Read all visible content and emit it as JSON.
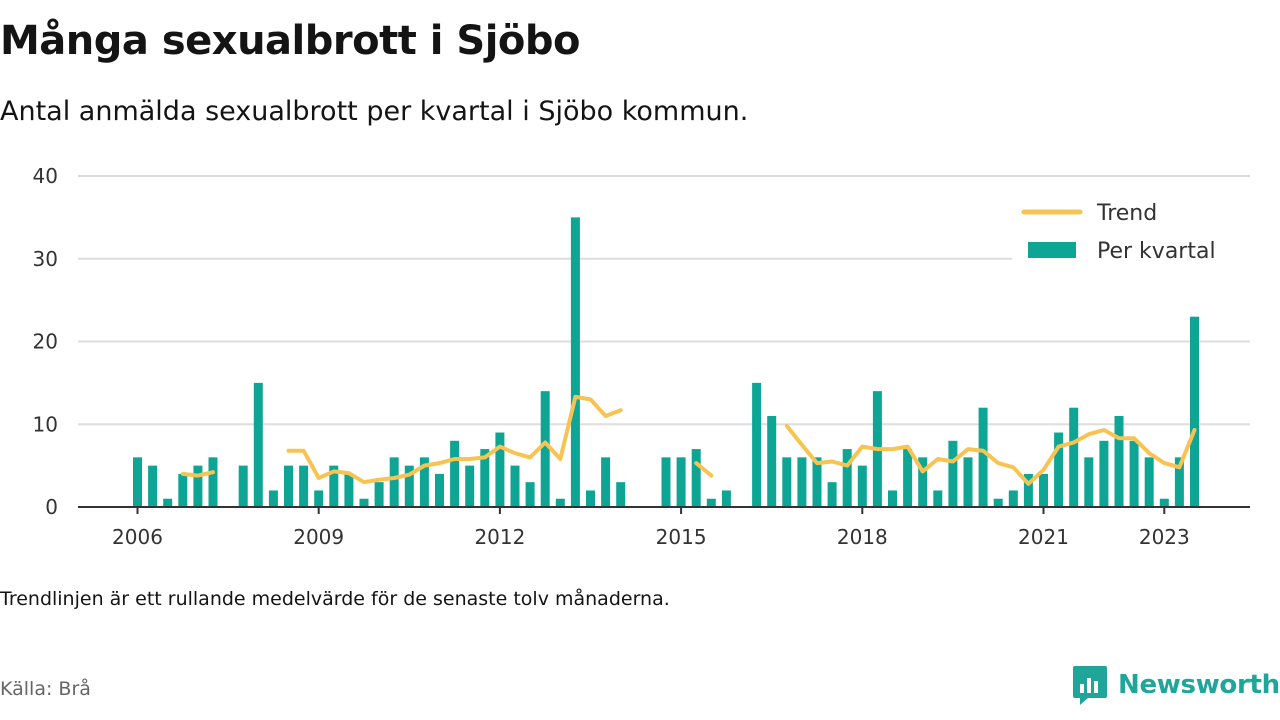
{
  "title": "Många sexualbrott i Sjöbo",
  "subtitle": "Antal anmälda sexualbrott per kvartal i Sjöbo kommun.",
  "footnote": "Trendlinjen är ett rullande medelvärde för de senaste tolv månaderna.",
  "source": "Källa: Brå",
  "brand": "Newsworthy",
  "colors": {
    "bars": "#0ea595",
    "trend": "#f7c453",
    "grid": "#dddddd",
    "axis": "#333333",
    "brand": "#20a59a"
  },
  "chart_data": {
    "type": "bar",
    "x": [
      "2006Q1",
      "2006Q2",
      "2006Q3",
      "2006Q4",
      "2007Q1",
      "2007Q2",
      "2007Q3",
      "2007Q4",
      "2008Q1",
      "2008Q2",
      "2008Q3",
      "2008Q4",
      "2009Q1",
      "2009Q2",
      "2009Q3",
      "2009Q4",
      "2010Q1",
      "2010Q2",
      "2010Q3",
      "2010Q4",
      "2011Q1",
      "2011Q2",
      "2011Q3",
      "2011Q4",
      "2012Q1",
      "2012Q2",
      "2012Q3",
      "2012Q4",
      "2013Q1",
      "2013Q2",
      "2013Q3",
      "2013Q4",
      "2014Q1",
      "2014Q2",
      "2014Q3",
      "2014Q4",
      "2015Q1",
      "2015Q2",
      "2015Q3",
      "2015Q4",
      "2016Q1",
      "2016Q2",
      "2016Q3",
      "2016Q4",
      "2017Q1",
      "2017Q2",
      "2017Q3",
      "2017Q4",
      "2018Q1",
      "2018Q2",
      "2018Q3",
      "2018Q4",
      "2019Q1",
      "2019Q2",
      "2019Q3",
      "2019Q4",
      "2020Q1",
      "2020Q2",
      "2020Q3",
      "2020Q4",
      "2021Q1",
      "2021Q2",
      "2021Q3",
      "2021Q4",
      "2022Q1",
      "2022Q2",
      "2022Q3",
      "2022Q4",
      "2023Q1",
      "2023Q2",
      "2023Q3"
    ],
    "series": [
      {
        "name": "Per kvartal",
        "type": "bar",
        "values": [
          6,
          5,
          1,
          4,
          5,
          6,
          null,
          5,
          15,
          2,
          5,
          5,
          2,
          5,
          4,
          1,
          3,
          6,
          5,
          6,
          4,
          8,
          5,
          7,
          9,
          5,
          3,
          14,
          1,
          35,
          2,
          6,
          3,
          null,
          null,
          6,
          6,
          7,
          1,
          2,
          null,
          15,
          11,
          6,
          6,
          6,
          3,
          7,
          5,
          14,
          2,
          7,
          6,
          2,
          8,
          6,
          12,
          1,
          2,
          4,
          4,
          9,
          12,
          6,
          8,
          11,
          8,
          6,
          1,
          6,
          23
        ]
      },
      {
        "name": "Trend",
        "type": "line",
        "values": [
          null,
          null,
          null,
          4,
          3.8,
          4.2,
          null,
          null,
          null,
          null,
          6.8,
          6.8,
          3.5,
          4.3,
          4.1,
          3.0,
          3.3,
          3.5,
          3.9,
          5.0,
          5.3,
          5.8,
          5.8,
          6.0,
          7.3,
          6.5,
          6.0,
          7.8,
          5.8,
          13.3,
          13.0,
          11.0,
          11.7,
          null,
          null,
          null,
          null,
          5.3,
          3.8,
          null,
          null,
          null,
          null,
          9.8,
          7.5,
          5.3,
          5.5,
          5.0,
          7.3,
          7.0,
          7.0,
          7.3,
          4.3,
          5.8,
          5.5,
          7.0,
          6.8,
          5.3,
          4.8,
          2.8,
          4.5,
          7.3,
          7.8,
          8.8,
          9.3,
          8.3,
          8.3,
          6.5,
          5.3,
          4.8,
          9.3
        ]
      }
    ],
    "xticks": [
      "2006",
      "2009",
      "2012",
      "2015",
      "2018",
      "2021",
      "2023"
    ],
    "ylim": [
      0,
      40
    ],
    "yticks": [
      0,
      10,
      20,
      30,
      40
    ],
    "grid": "horizontal",
    "legend": "top-right",
    "xlabel": "",
    "ylabel": ""
  }
}
